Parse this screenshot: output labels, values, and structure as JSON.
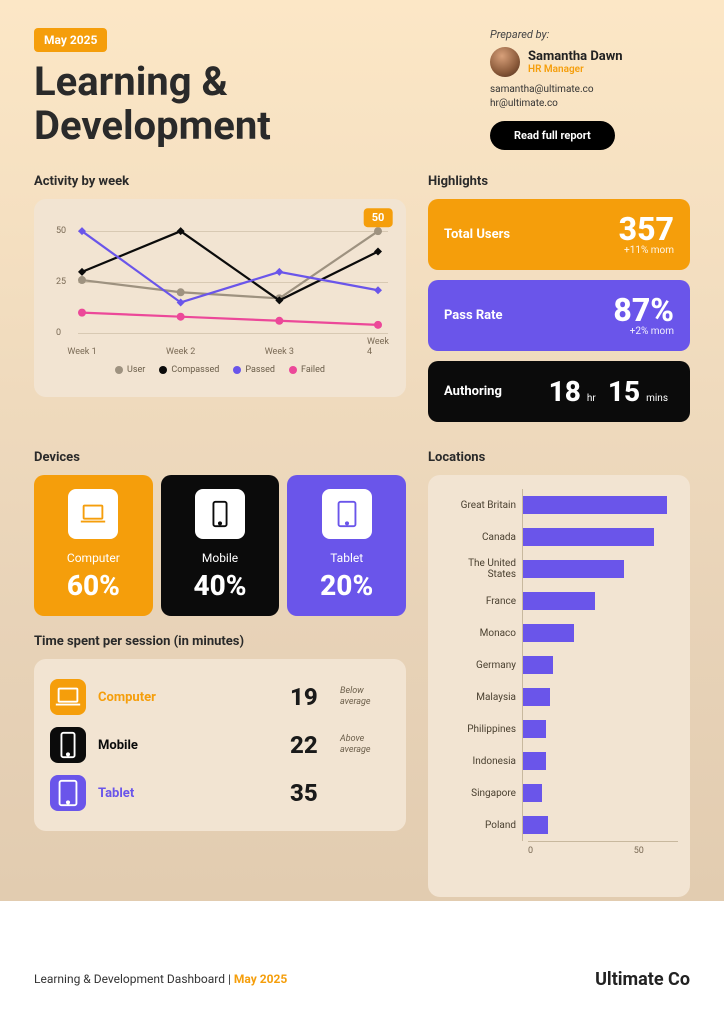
{
  "colors": {
    "orange": "#f59e0b",
    "purple": "#6a55ea",
    "black": "#0b0b0b",
    "pink": "#ec4899",
    "gray": "#9e9280",
    "card_bg": "#f2e4d2",
    "grid": "#d8c9b3",
    "text_muted": "#7a6a55"
  },
  "header": {
    "badge": "May 2025",
    "title_line1": "Learning &",
    "title_line2": "Development",
    "prepared_label": "Prepared by:",
    "author_name": "Samantha Dawn",
    "author_role": "HR Manager",
    "email1": "samantha@ultimate.co",
    "email2": "hr@ultimate.co",
    "button": "Read full report"
  },
  "activity": {
    "title": "Activity by week",
    "type": "line",
    "ymin": 0,
    "ymax": 55,
    "yticks": [
      0,
      25,
      50
    ],
    "categories": [
      "Week 1",
      "Week 2",
      "Week 3",
      "Week 4"
    ],
    "series": [
      {
        "name": "User",
        "color": "#9e9280",
        "marker": "circle",
        "values": [
          26,
          20,
          17,
          50
        ]
      },
      {
        "name": "Compassed",
        "color": "#0b0b0b",
        "marker": "diamond",
        "values": [
          30,
          50,
          16,
          40
        ]
      },
      {
        "name": "Passed",
        "color": "#6a55ea",
        "marker": "diamond",
        "values": [
          50,
          15,
          30,
          21
        ]
      },
      {
        "name": "Failed",
        "color": "#ec4899",
        "marker": "circle",
        "values": [
          10,
          8,
          6,
          4
        ]
      }
    ],
    "callout": {
      "series": 0,
      "index": 3,
      "label": "50"
    },
    "chart_bg": "#f2e4d2",
    "line_width": 2.2,
    "marker_size": 4
  },
  "highlights": {
    "title": "Highlights",
    "cards": [
      {
        "label": "Total Users",
        "value": "357",
        "sub": "+11% mom",
        "bg": "#f59e0b"
      },
      {
        "label": "Pass Rate",
        "value": "87%",
        "sub": "+2% mom",
        "bg": "#6a55ea"
      }
    ],
    "authoring": {
      "label": "Authoring",
      "hours": "18",
      "hours_unit": "hr",
      "mins": "15",
      "mins_unit": "mins",
      "bg": "#0b0b0b"
    }
  },
  "devices": {
    "title": "Devices",
    "items": [
      {
        "name": "Computer",
        "pct": "60%",
        "bg": "#f59e0b",
        "icon": "laptop"
      },
      {
        "name": "Mobile",
        "pct": "40%",
        "bg": "#0b0b0b",
        "icon": "phone"
      },
      {
        "name": "Tablet",
        "pct": "20%",
        "bg": "#6a55ea",
        "icon": "tablet"
      }
    ]
  },
  "time_spent": {
    "title": "Time spent per session (in minutes)",
    "rows": [
      {
        "name": "Computer",
        "value": "19",
        "note": "Below average",
        "color": "#f59e0b",
        "icon": "laptop"
      },
      {
        "name": "Mobile",
        "value": "22",
        "note": "Above average",
        "color": "#0b0b0b",
        "icon": "phone"
      },
      {
        "name": "Tablet",
        "value": "35",
        "note": "",
        "color": "#6a55ea",
        "icon": "tablet"
      }
    ]
  },
  "locations": {
    "title": "Locations",
    "type": "bar-horizontal",
    "xmin": 0,
    "xmax": 70,
    "xticks": [
      0,
      50
    ],
    "bar_color": "#6a55ea",
    "axis_color": "#c8b89e",
    "items": [
      {
        "name": "Great Britain",
        "value": 68
      },
      {
        "name": "Canada",
        "value": 62
      },
      {
        "name": "The United States",
        "value": 48
      },
      {
        "name": "France",
        "value": 34
      },
      {
        "name": "Monaco",
        "value": 24
      },
      {
        "name": "Germany",
        "value": 14
      },
      {
        "name": "Malaysia",
        "value": 13
      },
      {
        "name": "Philippines",
        "value": 11
      },
      {
        "name": "Indonesia",
        "value": 11
      },
      {
        "name": "Singapore",
        "value": 9
      },
      {
        "name": "Poland",
        "value": 12
      }
    ]
  },
  "footer": {
    "text_prefix": "Learning & Development Dashboard | ",
    "text_accent": "May 2025",
    "brand": "Ultimate Co"
  }
}
